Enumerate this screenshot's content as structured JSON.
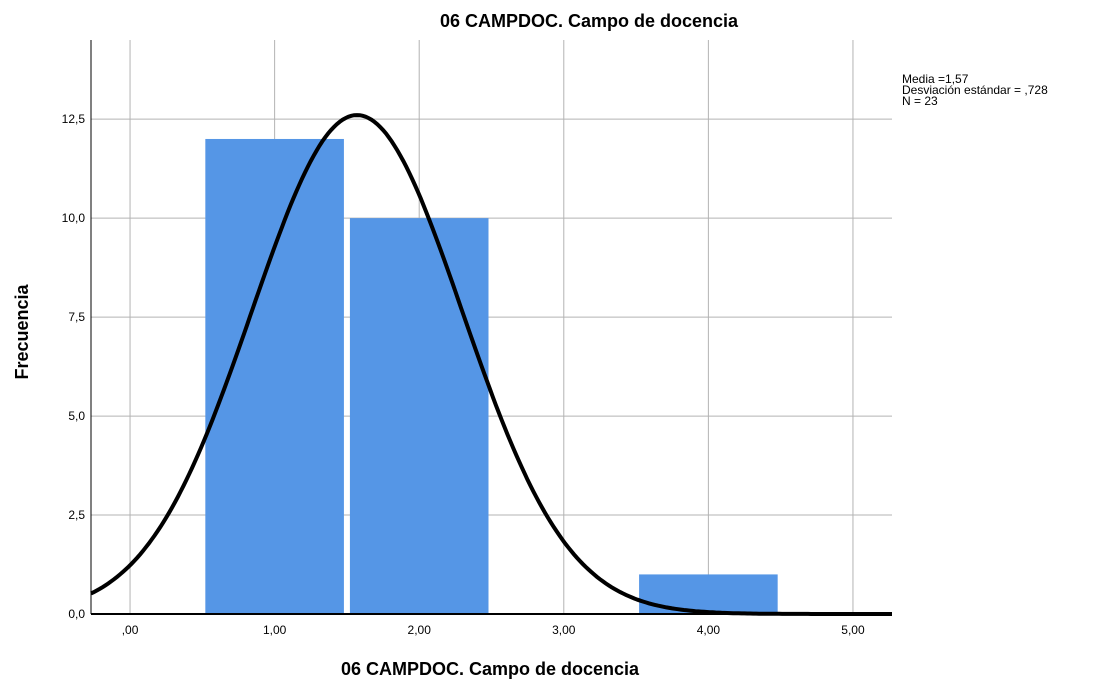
{
  "chart_data": {
    "type": "bar",
    "title": "06 CAMPDOC. Campo de docencia",
    "xlabel": "06 CAMPDOC. Campo de docencia",
    "ylabel": "Frecuencia",
    "xlim": [
      -0.27,
      5.27
    ],
    "ylim": [
      0,
      14.5
    ],
    "x_ticks": [
      0,
      1,
      2,
      3,
      4,
      5
    ],
    "x_tick_labels": [
      ",00",
      "1,00",
      "2,00",
      "3,00",
      "4,00",
      "5,00"
    ],
    "y_ticks": [
      0,
      2.5,
      5,
      7.5,
      10,
      12.5
    ],
    "y_tick_labels": [
      "0,0",
      "2,5",
      "5,0",
      "7,5",
      "10,0",
      "12,5"
    ],
    "grid": true,
    "bars": [
      {
        "x_start": 0.5,
        "x_end": 1.5,
        "value": 12
      },
      {
        "x_start": 1.5,
        "x_end": 2.5,
        "value": 10
      },
      {
        "x_start": 3.5,
        "x_end": 4.5,
        "value": 1
      }
    ],
    "bar_color": "#5596e6",
    "normal_curve": {
      "mean": 1.57,
      "sd": 0.728,
      "n": 23,
      "bin_width": 1,
      "color": "#000000"
    },
    "stats_lines": [
      "Media =1,57",
      "Desviación estándar = ,728",
      "N = 23"
    ]
  }
}
